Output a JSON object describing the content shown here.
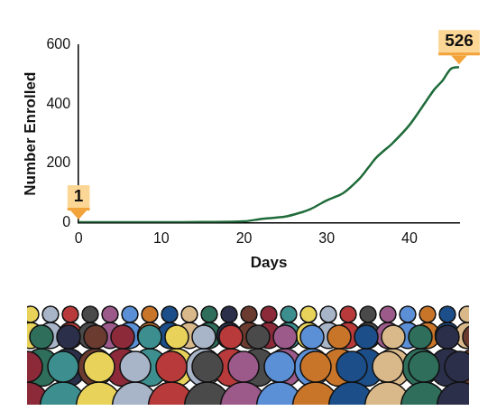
{
  "chart_data": {
    "type": "line",
    "x_label": "Days",
    "y_label": "Number Enrolled",
    "x": [
      0,
      5,
      10,
      15,
      20,
      22,
      25,
      27,
      28,
      30,
      32,
      34,
      35,
      36,
      38,
      40,
      42,
      43,
      44,
      45,
      46
    ],
    "values": [
      1,
      1,
      1,
      2,
      4,
      12,
      20,
      35,
      45,
      75,
      100,
      150,
      185,
      220,
      270,
      330,
      410,
      450,
      480,
      520,
      526
    ],
    "color": "#1f6b3a",
    "xlim": [
      0,
      46
    ],
    "xticks": [
      0,
      10,
      20,
      30,
      40
    ],
    "ylim": [
      0,
      600
    ],
    "yticks": [
      0,
      200,
      400,
      600
    ],
    "grid": false,
    "annotations": [
      {
        "x": 0,
        "y": 1,
        "label": "1"
      },
      {
        "x": 46,
        "y": 526,
        "label": "526"
      }
    ]
  }
}
